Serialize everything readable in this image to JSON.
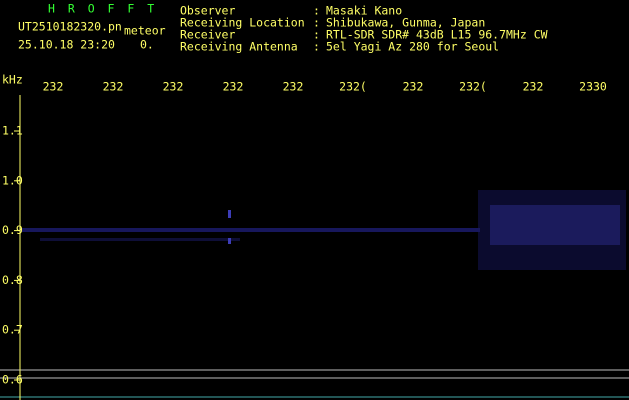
{
  "header": {
    "app": "H R O F F T",
    "file": "UT2510182320.pn",
    "mode": "meteor",
    "datetime": "25.10.18 23:20",
    "count": "0.",
    "fields": [
      {
        "label": "Observer",
        "value": "Masaki Kano"
      },
      {
        "label": "Receiving Location",
        "value": "Shibukawa, Gunma, Japan"
      },
      {
        "label": "Receiver",
        "value": "RTL-SDR SDR# 43dB L15 96.7MHz CW"
      },
      {
        "label": "Receiving Antenna",
        "value": "5el Yagi Az 280 for Seoul"
      }
    ]
  },
  "axis": {
    "unit": "kHz",
    "y_labels": [
      "1.1",
      "1.0",
      "0.9",
      "0.8",
      "0.7",
      "0.6"
    ],
    "x_labels": [
      "232",
      "232",
      "232",
      "232",
      "232",
      "232(",
      "232",
      "232(",
      "232",
      "2330"
    ]
  }
}
